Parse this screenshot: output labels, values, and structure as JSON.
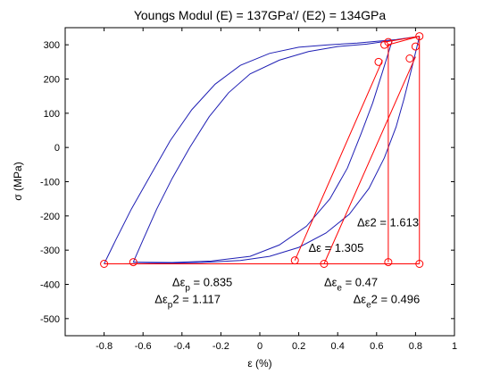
{
  "chart_data": {
    "type": "line",
    "title": "Youngs Modul (E) = 137GPa'/ (E2) = 134GPa",
    "xlabel": "ε (%)",
    "ylabel": "σ (MPa)",
    "xlim": [
      -1,
      1
    ],
    "ylim": [
      -550,
      350
    ],
    "xticks": [
      -0.8,
      -0.6,
      -0.4,
      -0.2,
      0,
      0.2,
      0.4,
      0.6,
      0.8,
      1
    ],
    "xtick_labels": [
      "-0.8",
      "-0.6",
      "-0.4",
      "-0.2",
      "0",
      "0.2",
      "0.4",
      "0.6",
      "0.8",
      "1"
    ],
    "yticks": [
      300,
      200,
      100,
      0,
      -100,
      -200,
      -300,
      -400,
      -500
    ],
    "ytick_labels": [
      "300",
      "200",
      "100",
      "0",
      "-100",
      "-200",
      "-300",
      "-400",
      "-500"
    ],
    "grid": false,
    "colors": {
      "loop": "#1f1fb4",
      "construction": "#ff0000",
      "axes": "#000000"
    },
    "series": [
      {
        "points": [
          [
            -0.8,
            -340
          ],
          [
            -0.74,
            -270
          ],
          [
            -0.66,
            -180
          ],
          [
            -0.56,
            -80
          ],
          [
            -0.46,
            20
          ],
          [
            -0.35,
            110
          ],
          [
            -0.23,
            185
          ],
          [
            -0.1,
            240
          ],
          [
            0.05,
            275
          ],
          [
            0.2,
            293
          ],
          [
            0.35,
            300
          ],
          [
            0.5,
            305
          ],
          [
            0.6,
            310
          ],
          [
            0.7,
            315
          ],
          [
            0.82,
            325
          ]
        ]
      },
      {
        "points": [
          [
            0.82,
            325
          ],
          [
            0.78,
            230
          ],
          [
            0.74,
            140
          ],
          [
            0.7,
            60
          ],
          [
            0.64,
            -30
          ],
          [
            0.56,
            -120
          ],
          [
            0.46,
            -195
          ],
          [
            0.34,
            -250
          ],
          [
            0.2,
            -292
          ],
          [
            0.05,
            -318
          ],
          [
            -0.1,
            -330
          ],
          [
            -0.3,
            -336
          ],
          [
            -0.5,
            -338
          ],
          [
            -0.7,
            -340
          ],
          [
            -0.8,
            -340
          ]
        ]
      },
      {
        "points": [
          [
            -0.65,
            -335
          ],
          [
            -0.6,
            -270
          ],
          [
            -0.53,
            -180
          ],
          [
            -0.45,
            -90
          ],
          [
            -0.36,
            0
          ],
          [
            -0.26,
            90
          ],
          [
            -0.16,
            160
          ],
          [
            -0.05,
            215
          ],
          [
            0.1,
            255
          ],
          [
            0.25,
            280
          ],
          [
            0.4,
            295
          ],
          [
            0.55,
            302
          ],
          [
            0.62,
            308
          ],
          [
            0.68,
            312
          ]
        ]
      },
      {
        "points": [
          [
            0.68,
            312
          ],
          [
            0.63,
            220
          ],
          [
            0.58,
            130
          ],
          [
            0.52,
            40
          ],
          [
            0.45,
            -60
          ],
          [
            0.36,
            -150
          ],
          [
            0.24,
            -230
          ],
          [
            0.1,
            -285
          ],
          [
            -0.05,
            -318
          ],
          [
            -0.25,
            -332
          ],
          [
            -0.45,
            -336
          ],
          [
            -0.65,
            -335
          ]
        ]
      }
    ],
    "construction_lines": [
      {
        "x": [
          -0.8,
          0.82
        ],
        "y": [
          -340,
          -340
        ]
      },
      {
        "x": [
          0.66,
          0.66
        ],
        "y": [
          300,
          -335
        ]
      },
      {
        "x": [
          0.82,
          0.82
        ],
        "y": [
          325,
          -340
        ]
      },
      {
        "x": [
          0.18,
          0.63
        ],
        "y": [
          -330,
          255
        ]
      },
      {
        "x": [
          0.33,
          0.8
        ],
        "y": [
          -340,
          265
        ]
      },
      {
        "x": [
          0.64,
          0.82
        ],
        "y": [
          308,
          325
        ]
      },
      {
        "x": [
          0.66,
          0.82
        ],
        "y": [
          300,
          325
        ]
      }
    ],
    "markers": [
      [
        -0.8,
        -340
      ],
      [
        -0.65,
        -335
      ],
      [
        0.18,
        -330
      ],
      [
        0.33,
        -340
      ],
      [
        0.66,
        -335
      ],
      [
        0.82,
        -340
      ],
      [
        0.61,
        250
      ],
      [
        0.64,
        300
      ],
      [
        0.66,
        308
      ],
      [
        0.77,
        260
      ],
      [
        0.8,
        295
      ],
      [
        0.82,
        325
      ]
    ],
    "annotations": [
      {
        "id": "de2",
        "main": "Δε2 = 1.613",
        "sub": "",
        "after": "",
        "x": 0.5,
        "y": -230
      },
      {
        "id": "de",
        "main": "Δε = 1.305",
        "sub": "",
        "after": "",
        "x": 0.25,
        "y": -305
      },
      {
        "id": "dep",
        "main": "Δε",
        "sub": "p",
        "after": " = 0.835",
        "x": -0.45,
        "y": -405
      },
      {
        "id": "dep2",
        "main": "Δε",
        "sub": "p",
        "after": "2 = 1.117",
        "x": -0.54,
        "y": -455
      },
      {
        "id": "dee",
        "main": "Δε",
        "sub": "e",
        "after": " = 0.47",
        "x": 0.33,
        "y": -405
      },
      {
        "id": "dee2",
        "main": "Δε",
        "sub": "e",
        "after": "2 = 0.496",
        "x": 0.48,
        "y": -455
      }
    ]
  }
}
